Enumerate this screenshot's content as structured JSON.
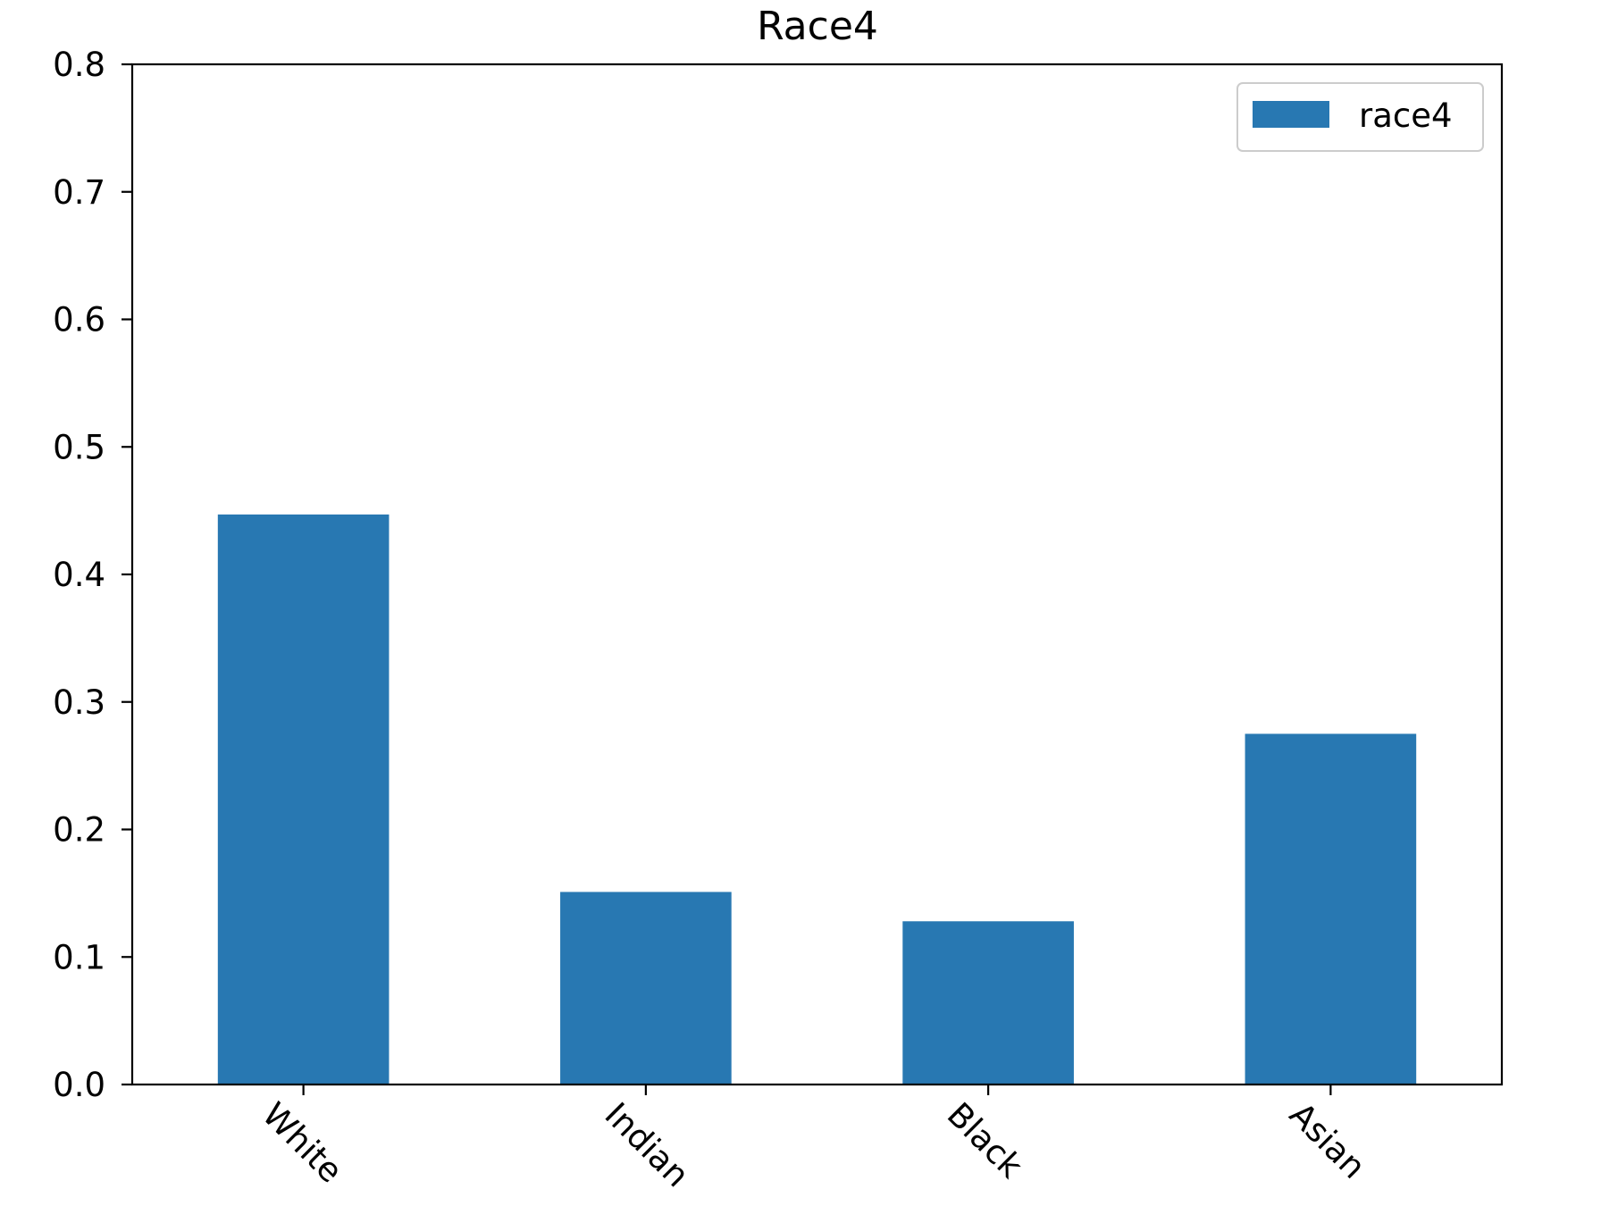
{
  "chart_data": {
    "type": "bar",
    "title": "Race4",
    "xlabel": "",
    "ylabel": "",
    "categories": [
      "White",
      "Indian",
      "Black",
      "Asian"
    ],
    "series": [
      {
        "name": "race4",
        "values": [
          0.447,
          0.151,
          0.128,
          0.275
        ],
        "color": "#2878b2"
      }
    ],
    "ylim": [
      0,
      0.8
    ],
    "yticks": [
      0.0,
      0.1,
      0.2,
      0.3,
      0.4,
      0.5,
      0.6,
      0.7,
      0.8
    ],
    "ytick_labels": [
      "0.0",
      "0.1",
      "0.2",
      "0.3",
      "0.4",
      "0.5",
      "0.6",
      "0.7",
      "0.8"
    ],
    "xtick_rotation": -45,
    "grid": false,
    "legend": {
      "position": "top-right",
      "label": "race4"
    }
  }
}
